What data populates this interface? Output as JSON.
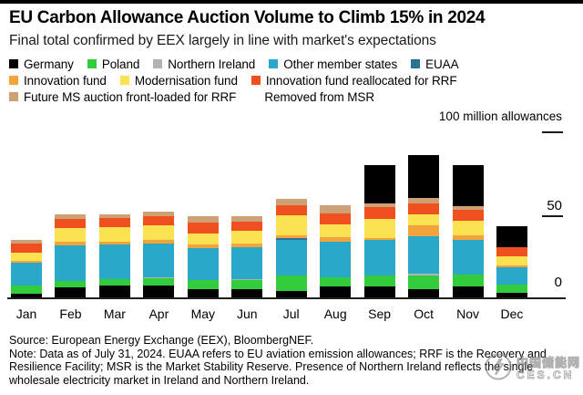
{
  "header": {
    "title": "EU Carbon Allowance Auction Volume to Climb 15% in 2024",
    "subtitle": "Final total confirmed by EEX largely in line with market's expectations"
  },
  "legend": {
    "rows": [
      [
        "Germany",
        "Poland",
        "Northern Ireland",
        "Other member states",
        "EUAA"
      ],
      [
        "Innovation fund",
        "Modernisation fund",
        "Innovation fund reallocated for RRF"
      ],
      [
        "Future MS auction front-loaded for RRF",
        "Removed from MSR"
      ]
    ]
  },
  "chart_data": {
    "type": "bar",
    "stacked": true,
    "title": "EU Carbon Allowance Auction Volume to Climb 15% in 2024",
    "xlabel": "",
    "ylabel": "100 million allowances",
    "ylim": [
      0,
      100
    ],
    "yticks": [
      0,
      50,
      100
    ],
    "ytick_labels": [
      "0",
      "50",
      "100 million allowances"
    ],
    "grid": false,
    "legend_position": "top",
    "categories": [
      "Jan",
      "Feb",
      "Mar",
      "Apr",
      "May",
      "Jun",
      "Jul",
      "Aug",
      "Sep",
      "Oct",
      "Nov",
      "Dec"
    ],
    "series": [
      {
        "name": "Germany",
        "color": "#000000",
        "values": [
          3,
          6.5,
          7.5,
          7.5,
          5.5,
          5.5,
          4.5,
          7,
          7,
          5.5,
          7,
          3.5
        ]
      },
      {
        "name": "Poland",
        "color": "#33cc3c",
        "values": [
          4.5,
          4,
          4,
          4.5,
          5.5,
          5.5,
          9,
          5.5,
          6.5,
          8,
          7,
          4.5
        ]
      },
      {
        "name": "Northern Ireland",
        "color": "#b3b3b3",
        "values": [
          0,
          0,
          0,
          0.5,
          0,
          0.5,
          0,
          0,
          0,
          1,
          0,
          0
        ]
      },
      {
        "name": "Other member states",
        "color": "#29a8c9",
        "values": [
          14,
          21,
          20.5,
          20.5,
          19,
          19,
          21.5,
          21.5,
          21.5,
          22.5,
          21,
          10.5
        ]
      },
      {
        "name": "EUAA",
        "color": "#2b7095",
        "values": [
          0,
          0,
          0,
          0,
          0,
          0,
          1,
          0,
          0,
          0,
          0,
          0
        ]
      },
      {
        "name": "Innovation fund",
        "color": "#f2a33c",
        "values": [
          1,
          2.5,
          2,
          2,
          2.5,
          2.5,
          1.5,
          2.5,
          1,
          6.5,
          2.5,
          1
        ]
      },
      {
        "name": "Modernisation fund",
        "color": "#fae251",
        "values": [
          5,
          8,
          8.5,
          8.5,
          6.5,
          7.5,
          12,
          8,
          11.5,
          7,
          9,
          5.5
        ]
      },
      {
        "name": "Innovation fund reallocated for RRF",
        "color": "#f04f1f",
        "values": [
          5.5,
          5.5,
          5.5,
          5.5,
          6.5,
          5.5,
          6.5,
          6.5,
          7,
          6.5,
          6.5,
          5.5
        ]
      },
      {
        "name": "Future MS auction front-loaded for RRF",
        "color": "#cda173",
        "values": [
          2,
          3,
          2.5,
          3,
          3.5,
          3,
          3.5,
          4.5,
          2.5,
          3,
          2.5,
          0
        ]
      },
      {
        "name": "Removed from MSR",
        "color": "#000000",
        "legend_color": "#ffffff",
        "values": [
          0,
          0,
          0,
          0,
          0,
          0,
          0,
          0,
          23,
          26,
          24.5,
          12.5
        ]
      }
    ]
  },
  "footer": {
    "source": "Source: European Energy Exchange (EEX), BloombergNEF.",
    "note": "Note: Data as of July 31, 2024. EUAA refers to EU aviation emission allowances; RRF is the Recovery and Resilience Facility; MSR is the Market Stability Reserve. Presence of Northern Ireland reflects the single wholesale electricity market in Ireland and Northern Ireland."
  },
  "watermark": {
    "line1": "中国储能网",
    "line2": "CES.CN"
  }
}
